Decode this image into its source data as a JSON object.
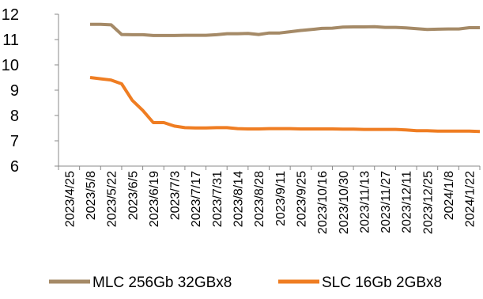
{
  "chart_data": {
    "type": "line",
    "title": "",
    "xlabel": "",
    "ylabel": "",
    "ylim": [
      6,
      12
    ],
    "yticks": [
      6,
      7,
      8,
      9,
      10,
      11,
      12
    ],
    "grid": false,
    "legend_position": "bottom",
    "x_tick_labels": [
      "2023/4/25",
      "2023/5/8",
      "2023/5/22",
      "2023/6/5",
      "2023/6/19",
      "2023/7/3",
      "2023/7/17",
      "2023/7/31",
      "2023/8/14",
      "2023/8/28",
      "2023/9/11",
      "2023/9/25",
      "2023/10/16",
      "2023/10/30",
      "2023/11/13",
      "2023/11/27",
      "2023/12/11",
      "2023/12/25",
      "2024/1/8",
      "2024/1/22"
    ],
    "x": [
      "2023/5/8",
      "2023/5/15",
      "2023/5/22",
      "2023/5/29",
      "2023/6/5",
      "2023/6/12",
      "2023/6/19",
      "2023/6/26",
      "2023/7/3",
      "2023/7/10",
      "2023/7/17",
      "2023/7/24",
      "2023/7/31",
      "2023/8/7",
      "2023/8/14",
      "2023/8/21",
      "2023/8/28",
      "2023/9/4",
      "2023/9/11",
      "2023/9/18",
      "2023/9/25",
      "2023/10/9",
      "2023/10/16",
      "2023/10/23",
      "2023/10/30",
      "2023/11/6",
      "2023/11/13",
      "2023/11/20",
      "2023/11/27",
      "2023/12/4",
      "2023/12/11",
      "2023/12/18",
      "2023/12/25",
      "2024/1/1",
      "2024/1/8",
      "2024/1/15",
      "2024/1/22",
      "2024/1/29"
    ],
    "series": [
      {
        "name": "MLC 256Gb 32GBx8",
        "color": "#a58a67",
        "values": [
          11.6,
          11.6,
          11.58,
          11.2,
          11.19,
          11.19,
          11.16,
          11.16,
          11.16,
          11.17,
          11.17,
          11.17,
          11.19,
          11.23,
          11.23,
          11.24,
          11.2,
          11.26,
          11.26,
          11.31,
          11.36,
          11.41,
          11.44,
          11.45,
          11.49,
          11.5,
          11.5,
          11.51,
          11.48,
          11.48,
          11.46,
          11.43,
          11.4,
          11.41,
          11.42,
          11.42,
          11.47,
          11.47
        ]
      },
      {
        "name": "SLC 16Gb 2GBx8",
        "color": "#ef7d22",
        "values": [
          9.5,
          9.45,
          9.4,
          9.25,
          8.6,
          8.2,
          7.72,
          7.72,
          7.58,
          7.52,
          7.51,
          7.51,
          7.52,
          7.52,
          7.48,
          7.47,
          7.47,
          7.48,
          7.48,
          7.48,
          7.47,
          7.47,
          7.47,
          7.47,
          7.46,
          7.46,
          7.45,
          7.45,
          7.45,
          7.45,
          7.43,
          7.4,
          7.4,
          7.38,
          7.38,
          7.38,
          7.38,
          7.37
        ]
      }
    ]
  }
}
